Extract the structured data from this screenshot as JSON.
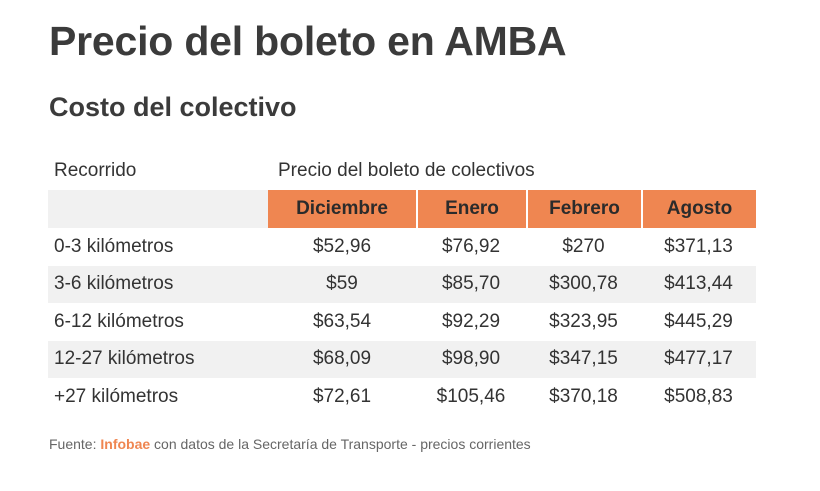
{
  "title": "Precio del boleto en AMBA",
  "subtitle": "Costo del colectivo",
  "table": {
    "row_header_label": "Recorrido",
    "group_label": "Precio del boleto de colectivos",
    "columns": [
      "Diciembre",
      "Enero",
      "Febrero",
      "Agosto"
    ],
    "rows": [
      {
        "label": "0-3 kilómetros",
        "values": [
          "$52,96",
          "$76,92",
          "$270",
          "$371,13"
        ]
      },
      {
        "label": "3-6 kilómetros",
        "values": [
          "$59",
          "$85,70",
          "$300,78",
          "$413,44"
        ]
      },
      {
        "label": "6-12 kilómetros",
        "values": [
          "$63,54",
          "$92,29",
          "$323,95",
          "$445,29"
        ]
      },
      {
        "label": "12-27 kilómetros",
        "values": [
          "$68,09",
          "$98,90",
          "$347,15",
          "$477,17"
        ]
      },
      {
        "label": "+27 kilómetros",
        "values": [
          "$72,61",
          "$105,46",
          "$370,18",
          "$508,83"
        ]
      }
    ],
    "header_color": "#ef8651",
    "stripe_color": "#f1f1f1"
  },
  "source": {
    "prefix": "Fuente: ",
    "brand": "Infobae",
    "suffix": " con datos de la Secretaría de Transporte - precios corrientes"
  },
  "chart_data": {
    "type": "table",
    "title": "Precio del boleto en AMBA",
    "subtitle": "Costo del colectivo",
    "row_header": "Recorrido",
    "group_header": "Precio del boleto de colectivos",
    "columns": [
      "Diciembre",
      "Enero",
      "Febrero",
      "Agosto"
    ],
    "rows": [
      {
        "label": "0-3 kilómetros",
        "values": [
          52.96,
          76.92,
          270,
          371.13
        ]
      },
      {
        "label": "3-6 kilómetros",
        "values": [
          59,
          85.7,
          300.78,
          413.44
        ]
      },
      {
        "label": "6-12 kilómetros",
        "values": [
          63.54,
          92.29,
          323.95,
          445.29
        ]
      },
      {
        "label": "12-27 kilómetros",
        "values": [
          68.09,
          98.9,
          347.15,
          477.17
        ]
      },
      {
        "label": "+27 kilómetros",
        "values": [
          72.61,
          105.46,
          370.18,
          508.83
        ]
      }
    ]
  }
}
